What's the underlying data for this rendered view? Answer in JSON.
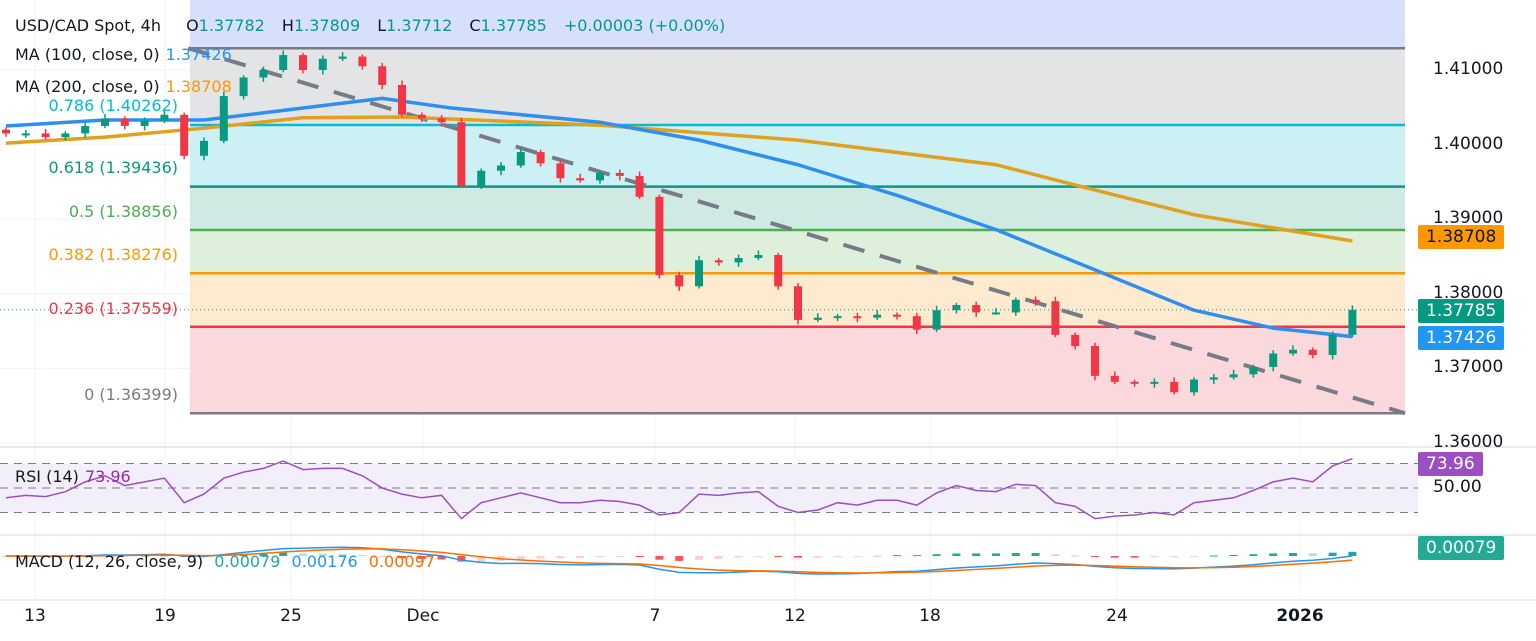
{
  "header": {
    "symbol": "USD/CAD Spot, 4h",
    "open_label": "O",
    "open": "1.37782",
    "high_label": "H",
    "high": "1.37809",
    "low_label": "L",
    "low": "1.37712",
    "close_label": "C",
    "close": "1.37785",
    "change": "+0.00003 (+0.00%)"
  },
  "indicators": {
    "ma100": {
      "label": "MA (100, close, 0)",
      "value": "1.37426",
      "color": "#2196f3"
    },
    "ma200": {
      "label": "MA (200, close, 0)",
      "value": "1.38708",
      "color": "#ff9800"
    },
    "rsi": {
      "label": "RSI (14)",
      "value": "73.96",
      "color": "#9c27b0"
    },
    "macd": {
      "label": "MACD (12, 26, close, 9)",
      "hist": "0.00079",
      "macd": "0.00176",
      "signal": "0.00097"
    }
  },
  "fib_levels": [
    {
      "ratio": 1,
      "price": 1.41292,
      "color": "#787b86",
      "fill": "#e3e4e6"
    },
    {
      "ratio": 0.786,
      "price": 1.40262,
      "label": "0.786 (1.40262)",
      "color": "#00bcd4",
      "fill": "#cdf0f4"
    },
    {
      "ratio": 0.618,
      "price": 1.39436,
      "label": "0.618 (1.39436)",
      "color": "#089981",
      "fill": "#cfe9e3"
    },
    {
      "ratio": 0.5,
      "price": 1.38856,
      "label": "0.5 (1.38856)",
      "color": "#4caf50",
      "fill": "#def0dc"
    },
    {
      "ratio": 0.382,
      "price": 1.38276,
      "label": "0.382 (1.38276)",
      "color": "#ff9800",
      "fill": "#feebcf"
    },
    {
      "ratio": 0.236,
      "price": 1.37559,
      "label": "0.236 (1.37559)",
      "color": "#f23645",
      "fill": "#fbd8db"
    },
    {
      "ratio": 0,
      "price": 1.36399,
      "label": "0 (1.36399)",
      "color": "#787b86"
    }
  ],
  "price_axis": [
    "1.41000",
    "1.40000",
    "1.39000",
    "1.38000",
    "1.37000",
    "1.36000"
  ],
  "rsi_axis": "50.00",
  "badges": {
    "ma200": {
      "value": "1.38708",
      "color": "#ff9800"
    },
    "last": {
      "value": "1.37785",
      "color": "#089981"
    },
    "ma100": {
      "value": "1.37426",
      "color": "#2196f3"
    },
    "rsi": {
      "value": "73.96",
      "color": "#9c4fc0"
    },
    "macd": {
      "value": "0.00079",
      "color": "#22ab94"
    }
  },
  "time_axis": [
    "13",
    "19",
    "25",
    "Dec",
    "7",
    "12",
    "18",
    "24",
    "2026"
  ],
  "chart_data": {
    "type": "candlestick",
    "title": "USD/CAD Spot, 4h",
    "ylim": [
      1.355,
      1.4185
    ],
    "grid": true,
    "closes": [
      1.4015,
      1.4015,
      1.401,
      1.4015,
      1.4025,
      1.4035,
      1.4025,
      1.4032,
      1.404,
      1.3985,
      1.4005,
      1.4065,
      1.409,
      1.41,
      1.412,
      1.41,
      1.4115,
      1.4118,
      1.4105,
      1.408,
      1.404,
      1.4035,
      1.403,
      1.3945,
      1.3965,
      1.3972,
      1.399,
      1.3975,
      1.3955,
      1.3952,
      1.3962,
      1.3958,
      1.393,
      1.3825,
      1.381,
      1.3845,
      1.3842,
      1.3848,
      1.3852,
      1.381,
      1.3765,
      1.3768,
      1.377,
      1.3768,
      1.3772,
      1.377,
      1.3752,
      1.3778,
      1.3785,
      1.3775,
      1.3775,
      1.3792,
      1.379,
      1.3745,
      1.373,
      1.369,
      1.3682,
      1.368,
      1.3682,
      1.3668,
      1.3685,
      1.3688,
      1.3692,
      1.3702,
      1.372,
      1.3725,
      1.3718,
      1.3745,
      1.37785
    ],
    "ma100": [
      {
        "bar": 0,
        "value": 1.4025
      },
      {
        "bar": 5,
        "value": 1.4033
      },
      {
        "bar": 10,
        "value": 1.4033
      },
      {
        "bar": 15,
        "value": 1.4049
      },
      {
        "bar": 19,
        "value": 1.4062
      },
      {
        "bar": 22.5,
        "value": 1.4049
      },
      {
        "bar": 30,
        "value": 1.403
      },
      {
        "bar": 35,
        "value": 1.4006
      },
      {
        "bar": 40,
        "value": 1.3973
      },
      {
        "bar": 45,
        "value": 1.3932
      },
      {
        "bar": 50,
        "value": 1.3886
      },
      {
        "bar": 55,
        "value": 1.3832
      },
      {
        "bar": 60,
        "value": 1.3778
      },
      {
        "bar": 64,
        "value": 1.3754
      },
      {
        "bar": 68,
        "value": 1.37426
      }
    ],
    "ma200": [
      {
        "bar": 0,
        "value": 1.4002
      },
      {
        "bar": 5,
        "value": 1.401
      },
      {
        "bar": 10,
        "value": 1.4022
      },
      {
        "bar": 15,
        "value": 1.4036
      },
      {
        "bar": 20,
        "value": 1.4037
      },
      {
        "bar": 30,
        "value": 1.4026
      },
      {
        "bar": 40,
        "value": 1.4006
      },
      {
        "bar": 50,
        "value": 1.3973
      },
      {
        "bar": 55,
        "value": 1.3939
      },
      {
        "bar": 60,
        "value": 1.3906
      },
      {
        "bar": 68,
        "value": 1.38708
      }
    ],
    "trendline": [
      {
        "bar": 9.2,
        "value": 1.41292
      },
      {
        "bar": 71,
        "value": 1.36399
      }
    ],
    "rsi": [
      42,
      44,
      43,
      47,
      55,
      60,
      52,
      55,
      58,
      38,
      45,
      58,
      63,
      66,
      72,
      65,
      66,
      66,
      60,
      50,
      45,
      42,
      44,
      25,
      38,
      42,
      46,
      42,
      38,
      38,
      40,
      39,
      36,
      28,
      30,
      45,
      44,
      46,
      47,
      35,
      30,
      32,
      38,
      36,
      40,
      40,
      36,
      46,
      52,
      48,
      47,
      53,
      52,
      38,
      35,
      25,
      27,
      28,
      30,
      28,
      38,
      40,
      42,
      48,
      55,
      58,
      55,
      68,
      73.96
    ],
    "rsi_levels": [
      70,
      50,
      30
    ],
    "colors": {
      "up": "#089981",
      "down": "#f23645",
      "macd": "#2196f3",
      "signal": "#ff6d00"
    }
  }
}
